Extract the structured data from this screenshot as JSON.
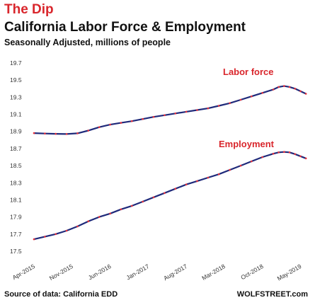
{
  "header": {
    "headline": "The Dip",
    "title": "California  Labor Force & Employment",
    "subtitle": "Seasonally Adjusted, millions of people"
  },
  "footer": {
    "source": "Source of data: California EDD",
    "brand": "WOLFSTREET.com"
  },
  "colors": {
    "line": "#1f2a7a",
    "dots": "#e8323c",
    "headline": "#d9262c",
    "label": "#d9262c"
  },
  "chart_data": {
    "type": "line",
    "ylim": [
      17.5,
      19.7
    ],
    "y_ticks": [
      "19.7",
      "19.5",
      "19.3",
      "19.1",
      "18.9",
      "18.7",
      "18.5",
      "18.3",
      "18.1",
      "17.9",
      "17.7",
      "17.5"
    ],
    "x_ticks": [
      "Apr-2015",
      "Nov-2015",
      "Jun-2016",
      "Jan-2017",
      "Aug-2017",
      "Mar-2018",
      "Oct-2018",
      "May-2019"
    ],
    "series": [
      {
        "name": "Labor force",
        "points": [
          [
            "2015-04",
            18.88
          ],
          [
            "2015-06",
            18.875
          ],
          [
            "2015-08",
            18.872
          ],
          [
            "2015-10",
            18.87
          ],
          [
            "2015-12",
            18.878
          ],
          [
            "2016-02",
            18.91
          ],
          [
            "2016-04",
            18.95
          ],
          [
            "2016-06",
            18.98
          ],
          [
            "2016-08",
            19.0
          ],
          [
            "2016-10",
            19.02
          ],
          [
            "2016-12",
            19.045
          ],
          [
            "2017-02",
            19.07
          ],
          [
            "2017-04",
            19.09
          ],
          [
            "2017-06",
            19.11
          ],
          [
            "2017-08",
            19.13
          ],
          [
            "2017-10",
            19.15
          ],
          [
            "2017-12",
            19.17
          ],
          [
            "2018-02",
            19.2
          ],
          [
            "2018-04",
            19.23
          ],
          [
            "2018-06",
            19.27
          ],
          [
            "2018-08",
            19.31
          ],
          [
            "2018-10",
            19.35
          ],
          [
            "2018-12",
            19.39
          ],
          [
            "2019-01",
            19.42
          ],
          [
            "2019-02",
            19.43
          ],
          [
            "2019-03",
            19.42
          ],
          [
            "2019-04",
            19.4
          ],
          [
            "2019-05",
            19.37
          ],
          [
            "2019-06",
            19.34
          ]
        ]
      },
      {
        "name": "Employment",
        "points": [
          [
            "2015-04",
            17.64
          ],
          [
            "2015-06",
            17.67
          ],
          [
            "2015-08",
            17.7
          ],
          [
            "2015-10",
            17.74
          ],
          [
            "2015-12",
            17.79
          ],
          [
            "2016-02",
            17.85
          ],
          [
            "2016-04",
            17.9
          ],
          [
            "2016-06",
            17.94
          ],
          [
            "2016-08",
            17.99
          ],
          [
            "2016-10",
            18.03
          ],
          [
            "2016-12",
            18.08
          ],
          [
            "2017-02",
            18.13
          ],
          [
            "2017-04",
            18.18
          ],
          [
            "2017-06",
            18.23
          ],
          [
            "2017-08",
            18.28
          ],
          [
            "2017-10",
            18.32
          ],
          [
            "2017-12",
            18.36
          ],
          [
            "2018-02",
            18.4
          ],
          [
            "2018-04",
            18.45
          ],
          [
            "2018-06",
            18.5
          ],
          [
            "2018-08",
            18.55
          ],
          [
            "2018-10",
            18.6
          ],
          [
            "2018-12",
            18.64
          ],
          [
            "2019-01",
            18.655
          ],
          [
            "2019-02",
            18.66
          ],
          [
            "2019-03",
            18.655
          ],
          [
            "2019-04",
            18.635
          ],
          [
            "2019-05",
            18.61
          ],
          [
            "2019-06",
            18.585
          ]
        ]
      }
    ]
  }
}
